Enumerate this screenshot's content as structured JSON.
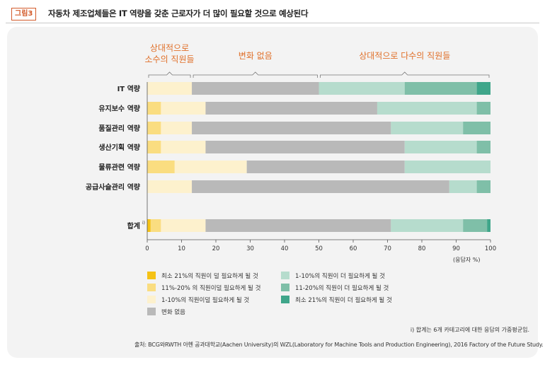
{
  "header": {
    "badge": "그림3",
    "title": "자동차 제조업체들은 IT 역량을 갖춘 근로자가 더 많이 필요할 것으로 예상된다"
  },
  "groups": [
    {
      "label_lines": [
        "상대적으로",
        "소수의 직원들"
      ]
    },
    {
      "label_lines": [
        "변화 없음"
      ]
    },
    {
      "label_lines": [
        "상대적으로 다수의 직원들"
      ]
    }
  ],
  "colors": {
    "dec21": "#f5c216",
    "dec11_20": "#fadd80",
    "dec1_10": "#fdf1cd",
    "nochange": "#b9b9b9",
    "inc1_10": "#b6dccd",
    "inc11_20": "#7fbfa8",
    "inc21": "#3fa68a",
    "accent": "#e0702a"
  },
  "chart_data": {
    "type": "bar",
    "orientation": "horizontal",
    "stacked": true,
    "categories": [
      "IT 역량",
      "유지보수 역량",
      "품질관리 역량",
      "생산기획 역량",
      "물류관련 역량",
      "공급사슬관리 역량",
      "합계"
    ],
    "category_note": "i)",
    "series": [
      {
        "name": "최소 21%의 직원이 덜 필요하게 될 것",
        "color_key": "dec21",
        "values": [
          0,
          0,
          0,
          0,
          0,
          0,
          1
        ]
      },
      {
        "name": "11%-20% 의 직원이덜 필요하게 될 것",
        "color_key": "dec11_20",
        "values": [
          0,
          4,
          4,
          4,
          8,
          0,
          3
        ]
      },
      {
        "name": "1-10%의 직원이덜 필요하게 될 것",
        "color_key": "dec1_10",
        "values": [
          13,
          13,
          9,
          13,
          21,
          13,
          13
        ]
      },
      {
        "name": "변화 없음",
        "color_key": "nochange",
        "values": [
          37,
          50,
          58,
          58,
          46,
          75,
          54
        ]
      },
      {
        "name": "1-10%의 직원이 더 필요하게 될 것",
        "color_key": "inc1_10",
        "values": [
          25,
          29,
          21,
          21,
          25,
          8,
          21
        ]
      },
      {
        "name": "11-20%의 직원이 더 필요하게 될 것",
        "color_key": "inc11_20",
        "values": [
          21,
          4,
          8,
          4,
          0,
          4,
          7
        ]
      },
      {
        "name": "최소 21%의 직원이 더 필요하게 될 것",
        "color_key": "inc21",
        "values": [
          4,
          0,
          0,
          0,
          0,
          0,
          1
        ]
      }
    ],
    "xlim": [
      0,
      100
    ],
    "xticks": [
      "0",
      "10",
      "20",
      "30",
      "40",
      "50",
      "60",
      "70",
      "80",
      "90",
      "100"
    ],
    "xlabel": "(응답자 %)",
    "legend_position": "bottom"
  },
  "footnote": "i) 합계는 6개 카테고리에 대한 응답의 가중평균임.",
  "source": "출처: BCG와RWTH 아헨 공과대학교(Aachen University)의 WZL(Laboratory for Machine Tools and Production Engineering), 2016 Factory of the Future Study."
}
